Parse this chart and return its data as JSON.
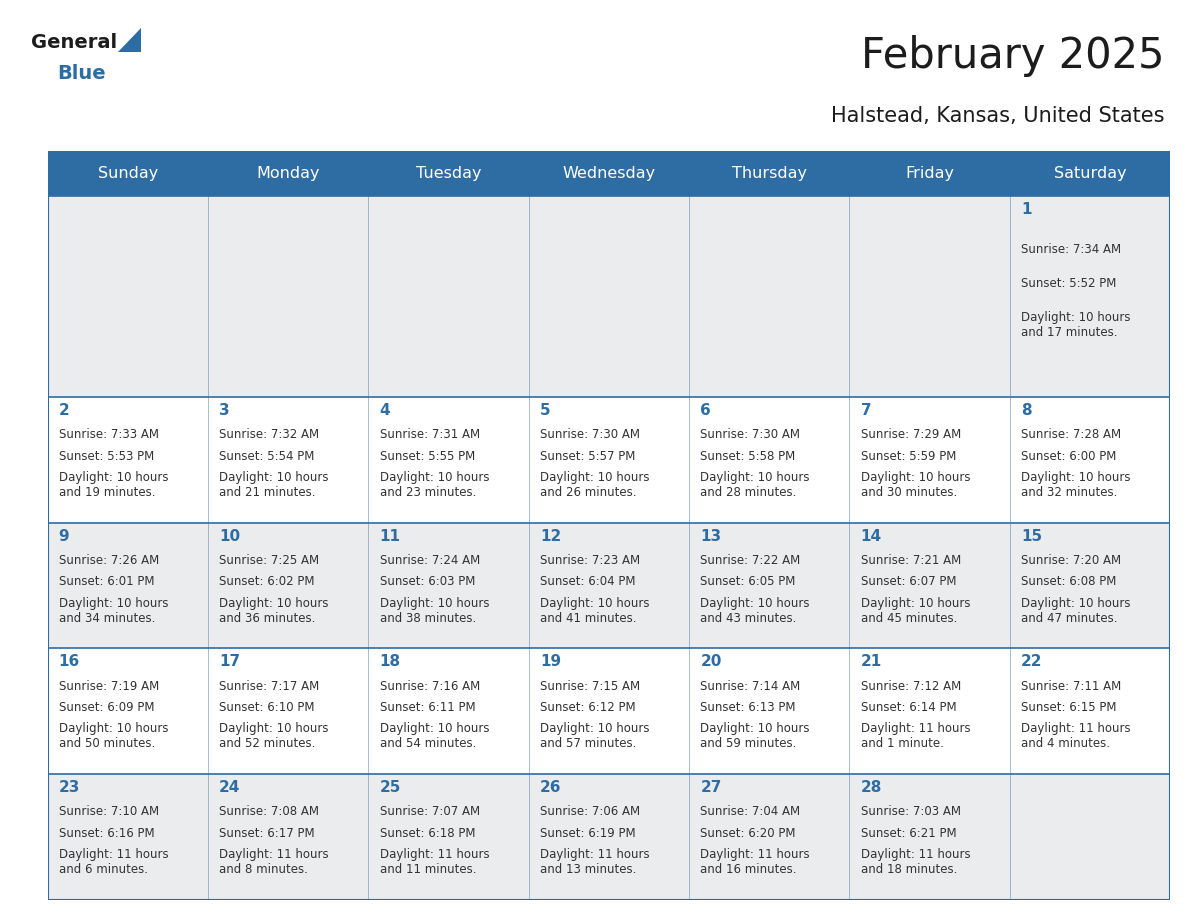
{
  "title": "February 2025",
  "subtitle": "Halstead, Kansas, United States",
  "header_bg": "#2E6DA4",
  "header_text": "#FFFFFF",
  "cell_bg_odd": "#EAECEE",
  "cell_bg_even": "#FFFFFF",
  "day_number_color": "#2E6DA4",
  "text_color": "#333333",
  "line_color": "#2E6DA4",
  "days_of_week": [
    "Sunday",
    "Monday",
    "Tuesday",
    "Wednesday",
    "Thursday",
    "Friday",
    "Saturday"
  ],
  "row_heights": [
    1.6,
    1.0,
    1.0,
    1.0,
    1.0
  ],
  "calendar": [
    [
      null,
      null,
      null,
      null,
      null,
      null,
      {
        "day": 1,
        "sunrise": "7:34 AM",
        "sunset": "5:52 PM",
        "daylight": "10 hours\nand 17 minutes."
      }
    ],
    [
      {
        "day": 2,
        "sunrise": "7:33 AM",
        "sunset": "5:53 PM",
        "daylight": "10 hours\nand 19 minutes."
      },
      {
        "day": 3,
        "sunrise": "7:32 AM",
        "sunset": "5:54 PM",
        "daylight": "10 hours\nand 21 minutes."
      },
      {
        "day": 4,
        "sunrise": "7:31 AM",
        "sunset": "5:55 PM",
        "daylight": "10 hours\nand 23 minutes."
      },
      {
        "day": 5,
        "sunrise": "7:30 AM",
        "sunset": "5:57 PM",
        "daylight": "10 hours\nand 26 minutes."
      },
      {
        "day": 6,
        "sunrise": "7:30 AM",
        "sunset": "5:58 PM",
        "daylight": "10 hours\nand 28 minutes."
      },
      {
        "day": 7,
        "sunrise": "7:29 AM",
        "sunset": "5:59 PM",
        "daylight": "10 hours\nand 30 minutes."
      },
      {
        "day": 8,
        "sunrise": "7:28 AM",
        "sunset": "6:00 PM",
        "daylight": "10 hours\nand 32 minutes."
      }
    ],
    [
      {
        "day": 9,
        "sunrise": "7:26 AM",
        "sunset": "6:01 PM",
        "daylight": "10 hours\nand 34 minutes."
      },
      {
        "day": 10,
        "sunrise": "7:25 AM",
        "sunset": "6:02 PM",
        "daylight": "10 hours\nand 36 minutes."
      },
      {
        "day": 11,
        "sunrise": "7:24 AM",
        "sunset": "6:03 PM",
        "daylight": "10 hours\nand 38 minutes."
      },
      {
        "day": 12,
        "sunrise": "7:23 AM",
        "sunset": "6:04 PM",
        "daylight": "10 hours\nand 41 minutes."
      },
      {
        "day": 13,
        "sunrise": "7:22 AM",
        "sunset": "6:05 PM",
        "daylight": "10 hours\nand 43 minutes."
      },
      {
        "day": 14,
        "sunrise": "7:21 AM",
        "sunset": "6:07 PM",
        "daylight": "10 hours\nand 45 minutes."
      },
      {
        "day": 15,
        "sunrise": "7:20 AM",
        "sunset": "6:08 PM",
        "daylight": "10 hours\nand 47 minutes."
      }
    ],
    [
      {
        "day": 16,
        "sunrise": "7:19 AM",
        "sunset": "6:09 PM",
        "daylight": "10 hours\nand 50 minutes."
      },
      {
        "day": 17,
        "sunrise": "7:17 AM",
        "sunset": "6:10 PM",
        "daylight": "10 hours\nand 52 minutes."
      },
      {
        "day": 18,
        "sunrise": "7:16 AM",
        "sunset": "6:11 PM",
        "daylight": "10 hours\nand 54 minutes."
      },
      {
        "day": 19,
        "sunrise": "7:15 AM",
        "sunset": "6:12 PM",
        "daylight": "10 hours\nand 57 minutes."
      },
      {
        "day": 20,
        "sunrise": "7:14 AM",
        "sunset": "6:13 PM",
        "daylight": "10 hours\nand 59 minutes."
      },
      {
        "day": 21,
        "sunrise": "7:12 AM",
        "sunset": "6:14 PM",
        "daylight": "11 hours\nand 1 minute."
      },
      {
        "day": 22,
        "sunrise": "7:11 AM",
        "sunset": "6:15 PM",
        "daylight": "11 hours\nand 4 minutes."
      }
    ],
    [
      {
        "day": 23,
        "sunrise": "7:10 AM",
        "sunset": "6:16 PM",
        "daylight": "11 hours\nand 6 minutes."
      },
      {
        "day": 24,
        "sunrise": "7:08 AM",
        "sunset": "6:17 PM",
        "daylight": "11 hours\nand 8 minutes."
      },
      {
        "day": 25,
        "sunrise": "7:07 AM",
        "sunset": "6:18 PM",
        "daylight": "11 hours\nand 11 minutes."
      },
      {
        "day": 26,
        "sunrise": "7:06 AM",
        "sunset": "6:19 PM",
        "daylight": "11 hours\nand 13 minutes."
      },
      {
        "day": 27,
        "sunrise": "7:04 AM",
        "sunset": "6:20 PM",
        "daylight": "11 hours\nand 16 minutes."
      },
      {
        "day": 28,
        "sunrise": "7:03 AM",
        "sunset": "6:21 PM",
        "daylight": "11 hours\nand 18 minutes."
      },
      null
    ]
  ]
}
